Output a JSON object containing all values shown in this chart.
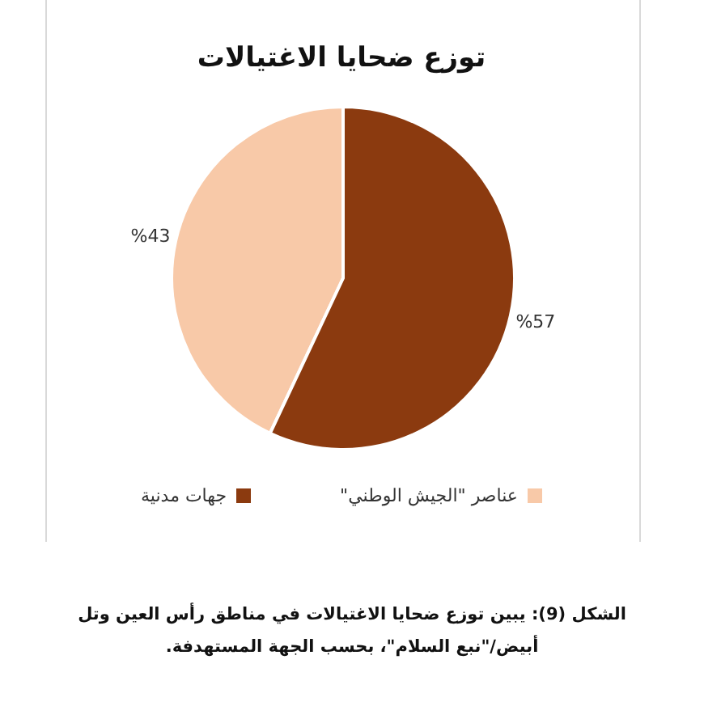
{
  "chart_data": {
    "type": "pie",
    "title": "توزع ضحايا الاغتيالات",
    "categories": [
      "عناصر \"الجيش الوطني\"",
      "جهات مدنية"
    ],
    "values": [
      43,
      57
    ],
    "colors": [
      "#f8c9a8",
      "#8b3a0f"
    ],
    "value_labels": [
      "%43",
      "%57"
    ],
    "legend": "bottom",
    "annotations": [
      "الشكل (9): يبين توزع ضحايا الاغتيالات في مناطق رأس العين وتل أبيض/\"نبع السلام\"، بحسب الجهة المستهدفة."
    ]
  }
}
